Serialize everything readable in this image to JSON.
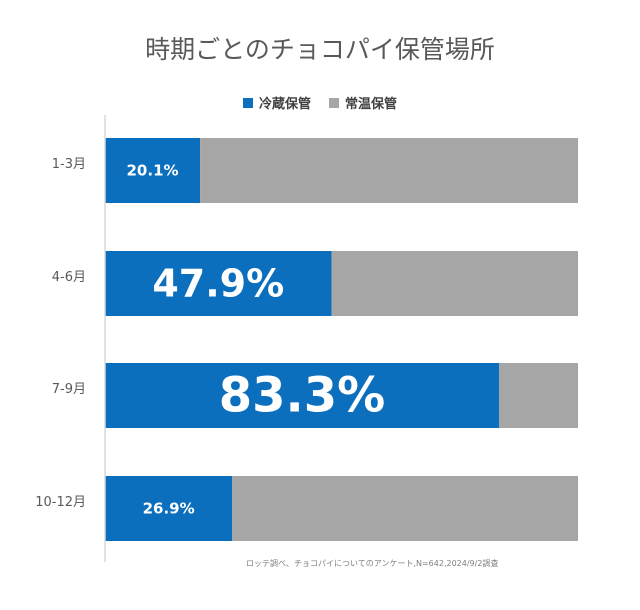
{
  "chart_data": {
    "type": "bar",
    "stacked": true,
    "orientation": "horizontal",
    "percent_stacked": true,
    "title": "時期ごとのチョコパイ保管場所",
    "categories": [
      "1-3月",
      "4-6月",
      "7-9月",
      "10-12月"
    ],
    "series": [
      {
        "name": "冷蔵保管",
        "values": [
          20.1,
          47.9,
          83.3,
          26.9
        ],
        "labels": [
          "20.1%",
          "47.9%",
          "83.3%",
          "26.9%"
        ]
      },
      {
        "name": "常温保管",
        "values": [
          79.9,
          52.1,
          16.7,
          73.1
        ]
      }
    ],
    "xlim": [
      0,
      100
    ],
    "legend": "top",
    "grid": false,
    "colors": {
      "冷蔵保管": "#0b6fbe",
      "常温保管": "#a6a6a6"
    }
  },
  "source_note": "ロッテ調べ、チョコパイについてのアンケート,N=642,2024/9/2調査"
}
